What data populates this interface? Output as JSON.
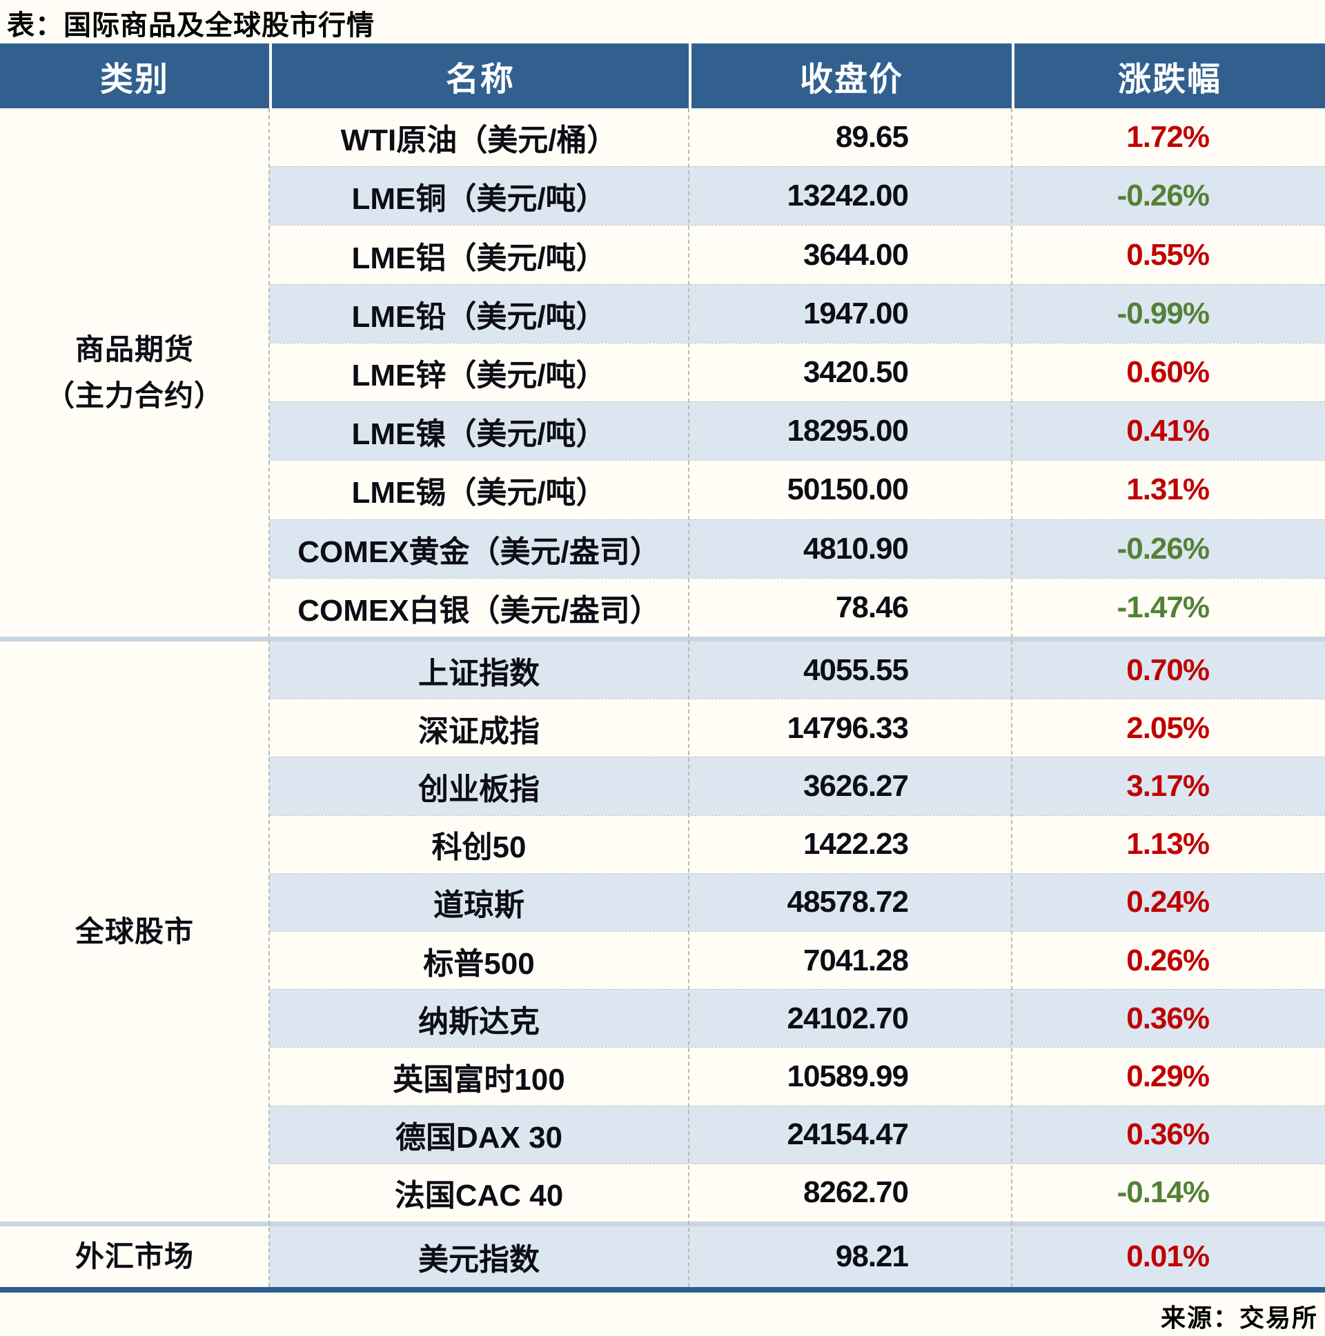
{
  "title": "表：国际商品及全球股市行情",
  "source": "来源：交易所",
  "colors": {
    "header_bg": "#31608f",
    "header_text": "#ffffff",
    "row_alt_bg": "#dce6f0",
    "row_bg": "#fffdf6",
    "up": "#c00000",
    "down": "#538135",
    "section_divider": "#c9d5e2",
    "bottom_border": "#2e5e8e"
  },
  "chart_data": {
    "type": "table",
    "title": "国际商品及全球股市行情",
    "columns": [
      "类别",
      "名称",
      "收盘价",
      "涨跌幅"
    ],
    "sections": [
      {
        "category": "商品期货（主力合约）",
        "category_lines": [
          "商品期货",
          "（主力合约）"
        ],
        "rows": [
          {
            "name": "WTI原油（美元/桶）",
            "close": "89.65",
            "change": "1.72%"
          },
          {
            "name": "LME铜（美元/吨）",
            "close": "13242.00",
            "change": "-0.26%"
          },
          {
            "name": "LME铝（美元/吨）",
            "close": "3644.00",
            "change": "0.55%"
          },
          {
            "name": "LME铅（美元/吨）",
            "close": "1947.00",
            "change": "-0.99%"
          },
          {
            "name": "LME锌（美元/吨）",
            "close": "3420.50",
            "change": "0.60%"
          },
          {
            "name": "LME镍（美元/吨）",
            "close": "18295.00",
            "change": "0.41%"
          },
          {
            "name": "LME锡（美元/吨）",
            "close": "50150.00",
            "change": "1.31%"
          },
          {
            "name": "COMEX黄金（美元/盎司）",
            "close": "4810.90",
            "change": "-0.26%"
          },
          {
            "name": "COMEX白银（美元/盎司）",
            "close": "78.46",
            "change": "-1.47%"
          }
        ]
      },
      {
        "category": "全球股市",
        "category_lines": [
          "全球股市"
        ],
        "rows": [
          {
            "name": "上证指数",
            "close": "4055.55",
            "change": "0.70%"
          },
          {
            "name": "深证成指",
            "close": "14796.33",
            "change": "2.05%"
          },
          {
            "name": "创业板指",
            "close": "3626.27",
            "change": "3.17%"
          },
          {
            "name": "科创50",
            "close": "1422.23",
            "change": "1.13%"
          },
          {
            "name": "道琼斯",
            "close": "48578.72",
            "change": "0.24%"
          },
          {
            "name": "标普500",
            "close": "7041.28",
            "change": "0.26%"
          },
          {
            "name": "纳斯达克",
            "close": "24102.70",
            "change": "0.36%"
          },
          {
            "name": "英国富时100",
            "close": "10589.99",
            "change": "0.29%"
          },
          {
            "name": "德国DAX 30",
            "close": "24154.47",
            "change": "0.36%"
          },
          {
            "name": "法国CAC 40",
            "close": "8262.70",
            "change": "-0.14%"
          }
        ]
      },
      {
        "category": "外汇市场",
        "category_lines": [
          "外汇市场"
        ],
        "rows": [
          {
            "name": "美元指数",
            "close": "98.21",
            "change": "0.01%"
          }
        ]
      }
    ]
  }
}
